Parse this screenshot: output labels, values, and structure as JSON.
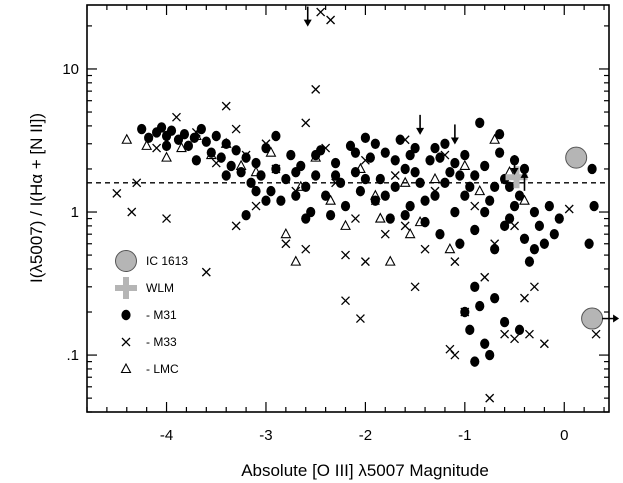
{
  "chart_data": {
    "type": "scatter",
    "xlabel": "Absolute [O III] λ5007 Magnitude",
    "ylabel": "I(λ5007) / I(Hα + [N II])",
    "xlim": [
      -4.8,
      0.45
    ],
    "ylim": [
      0.04,
      28
    ],
    "y_scale": "log",
    "x_ticks": [
      -4,
      -3,
      -2,
      -1,
      0
    ],
    "x_tick_labels": [
      "-4",
      "-3",
      "-2",
      "-1",
      "0"
    ],
    "y_ticks": [
      0.1,
      1,
      10
    ],
    "y_tick_labels": [
      ".1",
      "1",
      "10"
    ],
    "grid": false,
    "reference_line": {
      "y": 1.6,
      "style": "dashed"
    },
    "legend": {
      "position": "lower-left",
      "entries": [
        {
          "label": "IC 1613",
          "marker": "big-circle"
        },
        {
          "label": "WLM",
          "marker": "big-plus"
        },
        {
          "label": "- M31",
          "marker": "dot"
        },
        {
          "label": "- M33",
          "marker": "x"
        },
        {
          "label": "- LMC",
          "marker": "triangle"
        }
      ]
    },
    "colors": {
      "big_marker": "#b5b5b5",
      "marker": "#000000"
    },
    "series": [
      {
        "label": "IC 1613",
        "marker": "big-circle",
        "points": [
          [
            0.12,
            2.4
          ],
          [
            0.28,
            0.18
          ]
        ],
        "note": "second point has arrow to right"
      },
      {
        "label": "WLM",
        "marker": "big-plus",
        "points": [
          [
            -0.48,
            1.75
          ]
        ]
      },
      {
        "label": "- M31",
        "marker": "dot",
        "points": [
          [
            -4.25,
            3.8
          ],
          [
            -4.18,
            3.3
          ],
          [
            -4.1,
            3.6
          ],
          [
            -4.05,
            3.9
          ],
          [
            -4.0,
            3.4
          ],
          [
            -3.95,
            3.7
          ],
          [
            -3.88,
            3.2
          ],
          [
            -3.82,
            3.5
          ],
          [
            -3.78,
            2.9
          ],
          [
            -3.72,
            3.3
          ],
          [
            -3.65,
            3.8
          ],
          [
            -3.6,
            3.1
          ],
          [
            -3.55,
            2.6
          ],
          [
            -3.5,
            3.4
          ],
          [
            -3.45,
            2.4
          ],
          [
            -3.4,
            3.0
          ],
          [
            -3.35,
            2.1
          ],
          [
            -3.3,
            2.7
          ],
          [
            -3.25,
            1.9
          ],
          [
            -3.2,
            2.4
          ],
          [
            -3.15,
            1.6
          ],
          [
            -3.1,
            2.2
          ],
          [
            -3.05,
            1.8
          ],
          [
            -3.0,
            2.8
          ],
          [
            -2.95,
            1.4
          ],
          [
            -2.9,
            2.0
          ],
          [
            -2.85,
            1.2
          ],
          [
            -2.8,
            1.7
          ],
          [
            -2.75,
            2.5
          ],
          [
            -2.7,
            1.3
          ],
          [
            -2.65,
            2.1
          ],
          [
            -2.6,
            1.5
          ],
          [
            -2.55,
            1.0
          ],
          [
            -2.5,
            1.8
          ],
          [
            -2.45,
            2.7
          ],
          [
            -2.4,
            1.3
          ],
          [
            -2.35,
            0.95
          ],
          [
            -2.3,
            2.2
          ],
          [
            -2.25,
            1.6
          ],
          [
            -2.2,
            1.1
          ],
          [
            -2.15,
            2.9
          ],
          [
            -2.1,
            1.9
          ],
          [
            -2.05,
            1.4
          ],
          [
            -2.0,
            3.3
          ],
          [
            -1.95,
            2.4
          ],
          [
            -1.9,
            1.2
          ],
          [
            -1.85,
            1.7
          ],
          [
            -1.8,
            2.6
          ],
          [
            -1.75,
            0.9
          ],
          [
            -1.7,
            1.5
          ],
          [
            -1.65,
            3.2
          ],
          [
            -1.6,
            2.0
          ],
          [
            -1.55,
            1.1
          ],
          [
            -1.5,
            2.8
          ],
          [
            -1.45,
            1.6
          ],
          [
            -1.4,
            0.85
          ],
          [
            -1.35,
            2.3
          ],
          [
            -1.3,
            1.3
          ],
          [
            -1.25,
            0.7
          ],
          [
            -1.2,
            3.0
          ],
          [
            -1.15,
            1.9
          ],
          [
            -1.1,
            1.0
          ],
          [
            -1.05,
            0.6
          ],
          [
            -1.0,
            2.5
          ],
          [
            -0.95,
            1.5
          ],
          [
            -0.9,
            0.75
          ],
          [
            -0.85,
            4.2
          ],
          [
            -0.8,
            2.1
          ],
          [
            -0.75,
            1.2
          ],
          [
            -0.7,
            0.55
          ],
          [
            -0.65,
            3.5
          ],
          [
            -0.6,
            1.7
          ],
          [
            -0.55,
            0.9
          ],
          [
            -0.5,
            2.3
          ],
          [
            -0.45,
            1.3
          ],
          [
            -0.4,
            0.65
          ],
          [
            -0.35,
            0.45
          ],
          [
            -0.3,
            1.0
          ],
          [
            -0.25,
            0.8
          ],
          [
            -0.2,
            0.6
          ],
          [
            -0.15,
            1.1
          ],
          [
            -0.1,
            0.7
          ],
          [
            -0.05,
            0.9
          ],
          [
            0.25,
            0.6
          ],
          [
            0.3,
            1.1
          ],
          [
            0.28,
            2.0
          ],
          [
            -4.0,
            2.9
          ],
          [
            -3.7,
            2.3
          ],
          [
            -3.4,
            1.8
          ],
          [
            -3.1,
            1.4
          ],
          [
            -2.9,
            3.4
          ],
          [
            -2.7,
            1.9
          ],
          [
            -2.5,
            2.5
          ],
          [
            -2.3,
            1.8
          ],
          [
            -2.1,
            2.6
          ],
          [
            -1.9,
            3.0
          ],
          [
            -1.7,
            2.3
          ],
          [
            -1.5,
            1.9
          ],
          [
            -1.3,
            2.8
          ],
          [
            -1.1,
            2.2
          ],
          [
            -0.9,
            1.8
          ],
          [
            -0.7,
            1.5
          ],
          [
            -0.5,
            1.1
          ],
          [
            -0.3,
            0.55
          ],
          [
            -1.8,
            1.3
          ],
          [
            -1.6,
            0.95
          ],
          [
            -1.4,
            1.2
          ],
          [
            -1.2,
            1.6
          ],
          [
            -1.0,
            1.3
          ],
          [
            -0.8,
            1.0
          ],
          [
            -0.6,
            0.8
          ],
          [
            -0.9,
            0.3
          ],
          [
            -0.85,
            0.22
          ],
          [
            -0.95,
            0.15
          ],
          [
            -0.8,
            0.12
          ],
          [
            -0.75,
            0.1
          ],
          [
            -1.0,
            0.2
          ],
          [
            -0.7,
            0.25
          ],
          [
            -0.6,
            0.17
          ],
          [
            -0.45,
            0.15
          ],
          [
            -0.9,
            0.09
          ],
          [
            -2.6,
            0.9
          ],
          [
            -3.0,
            1.2
          ],
          [
            -3.2,
            0.95
          ],
          [
            -2.0,
            1.7
          ],
          [
            -1.55,
            2.5
          ],
          [
            -1.25,
            2.4
          ],
          [
            -1.05,
            1.8
          ],
          [
            -0.65,
            2.6
          ],
          [
            -0.55,
            1.5
          ],
          [
            -0.4,
            2.0
          ]
        ]
      },
      {
        "label": "- M33",
        "marker": "x",
        "points": [
          [
            -4.5,
            1.35
          ],
          [
            -4.3,
            1.6
          ],
          [
            -4.1,
            2.8
          ],
          [
            -3.9,
            4.6
          ],
          [
            -3.7,
            3.6
          ],
          [
            -3.5,
            2.2
          ],
          [
            -3.4,
            5.5
          ],
          [
            -3.3,
            3.8
          ],
          [
            -3.2,
            2.5
          ],
          [
            -3.1,
            1.1
          ],
          [
            -3.0,
            3.0
          ],
          [
            -2.9,
            2.0
          ],
          [
            -2.8,
            0.6
          ],
          [
            -2.7,
            1.4
          ],
          [
            -2.6,
            4.2
          ],
          [
            -2.5,
            7.2
          ],
          [
            -2.4,
            2.8
          ],
          [
            -2.3,
            1.6
          ],
          [
            -2.2,
            0.5
          ],
          [
            -2.1,
            0.9
          ],
          [
            -2.0,
            2.3
          ],
          [
            -1.9,
            1.2
          ],
          [
            -1.8,
            0.7
          ],
          [
            -1.7,
            1.8
          ],
          [
            -1.6,
            3.2
          ],
          [
            -1.5,
            0.3
          ],
          [
            -1.4,
            0.55
          ],
          [
            -1.3,
            1.4
          ],
          [
            -1.2,
            2.5
          ],
          [
            -1.1,
            0.45
          ],
          [
            -1.0,
            0.2
          ],
          [
            -0.9,
            1.1
          ],
          [
            -0.8,
            0.35
          ],
          [
            -0.7,
            0.6
          ],
          [
            -0.6,
            0.14
          ],
          [
            -0.5,
            0.8
          ],
          [
            -0.4,
            0.25
          ],
          [
            -0.3,
            0.3
          ],
          [
            -0.2,
            0.12
          ],
          [
            -4.0,
            0.9
          ],
          [
            -3.6,
            0.38
          ],
          [
            -3.3,
            0.8
          ],
          [
            -2.2,
            0.24
          ],
          [
            -2.05,
            0.18
          ],
          [
            -1.15,
            0.11
          ],
          [
            -1.1,
            0.1
          ],
          [
            -0.5,
            0.13
          ],
          [
            -0.35,
            0.14
          ],
          [
            -0.75,
            0.05
          ],
          [
            -2.45,
            25
          ],
          [
            -2.35,
            22
          ],
          [
            0.05,
            1.05
          ],
          [
            0.32,
            0.14
          ],
          [
            -4.35,
            1.0
          ],
          [
            -2.6,
            0.55
          ],
          [
            -2.0,
            0.45
          ],
          [
            -1.6,
            0.8
          ]
        ]
      },
      {
        "label": "- LMC",
        "marker": "triangle",
        "points": [
          [
            -4.4,
            3.2
          ],
          [
            -4.2,
            2.9
          ],
          [
            -4.0,
            2.4
          ],
          [
            -3.85,
            2.8
          ],
          [
            -3.7,
            3.4
          ],
          [
            -3.55,
            2.5
          ],
          [
            -3.4,
            3.0
          ],
          [
            -3.25,
            2.1
          ],
          [
            -3.1,
            1.9
          ],
          [
            -2.95,
            2.6
          ],
          [
            -2.8,
            0.7
          ],
          [
            -2.65,
            1.5
          ],
          [
            -2.5,
            2.4
          ],
          [
            -2.35,
            1.2
          ],
          [
            -2.2,
            0.8
          ],
          [
            -2.05,
            2.0
          ],
          [
            -1.9,
            1.3
          ],
          [
            -1.75,
            0.45
          ],
          [
            -1.6,
            1.6
          ],
          [
            -1.45,
            0.85
          ],
          [
            -1.3,
            1.7
          ],
          [
            -1.15,
            0.55
          ],
          [
            -1.0,
            2.1
          ],
          [
            -0.85,
            1.4
          ],
          [
            -0.7,
            3.2
          ],
          [
            -0.55,
            1.9
          ],
          [
            -0.4,
            1.2
          ],
          [
            -2.7,
            0.45
          ],
          [
            -1.85,
            0.9
          ],
          [
            -1.55,
            0.7
          ]
        ]
      }
    ],
    "upper_limits": [
      [
        -2.58,
        24
      ],
      [
        -1.45,
        4.2
      ],
      [
        -1.1,
        3.6
      ],
      [
        -0.5,
        2.2
      ]
    ],
    "lower_limits": [
      [
        -0.4,
        1.6
      ]
    ]
  }
}
